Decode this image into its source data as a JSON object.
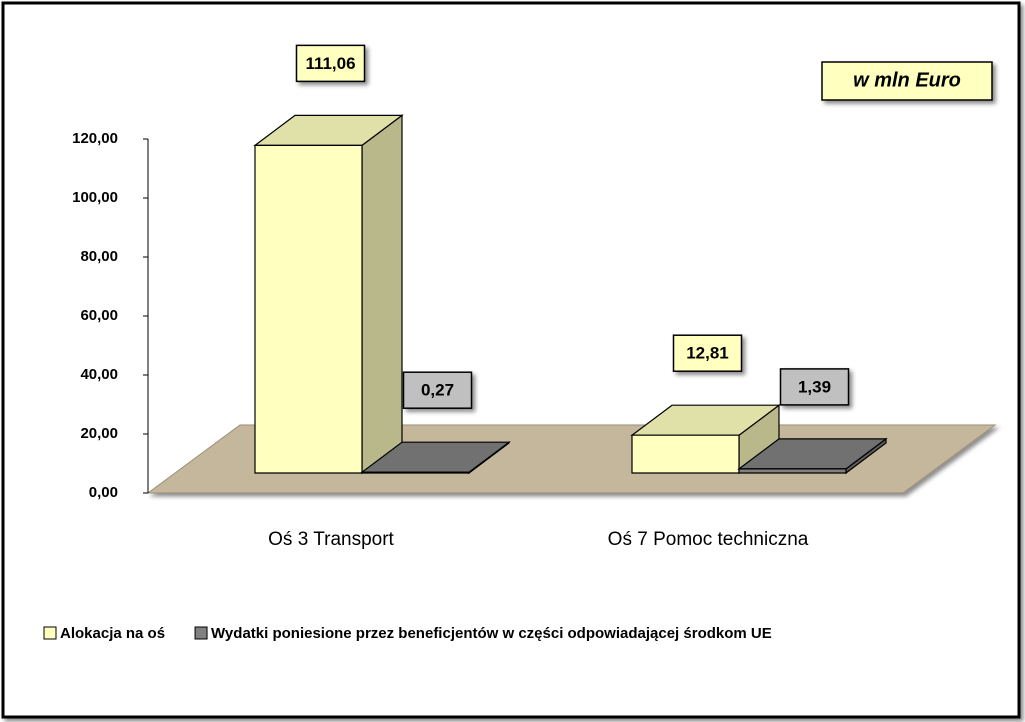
{
  "chart_data": {
    "type": "bar3d",
    "annotation": "w mln Euro",
    "categories": [
      "Oś 3 Transport",
      "Oś 7 Pomoc techniczna"
    ],
    "series": [
      {
        "name": "Alokacja na oś",
        "color": "#ffffc0",
        "values": [
          111.06,
          12.81
        ],
        "value_labels": [
          "111,06",
          "12,81"
        ]
      },
      {
        "name": "Wydatki poniesione przez beneficjentów w części odpowiadającej środkom UE",
        "color": "#808080",
        "values": [
          0.27,
          1.39
        ],
        "value_labels": [
          "0,27",
          "1,39"
        ]
      }
    ],
    "ylim": [
      0,
      120
    ],
    "yticks": [
      {
        "value": 0,
        "label": "0,00"
      },
      {
        "value": 20,
        "label": "20,00"
      },
      {
        "value": 40,
        "label": "40,00"
      },
      {
        "value": 60,
        "label": "60,00"
      },
      {
        "value": 80,
        "label": "80,00"
      },
      {
        "value": 100,
        "label": "100,00"
      },
      {
        "value": 120,
        "label": "120,00"
      }
    ],
    "legend": "bottom"
  }
}
